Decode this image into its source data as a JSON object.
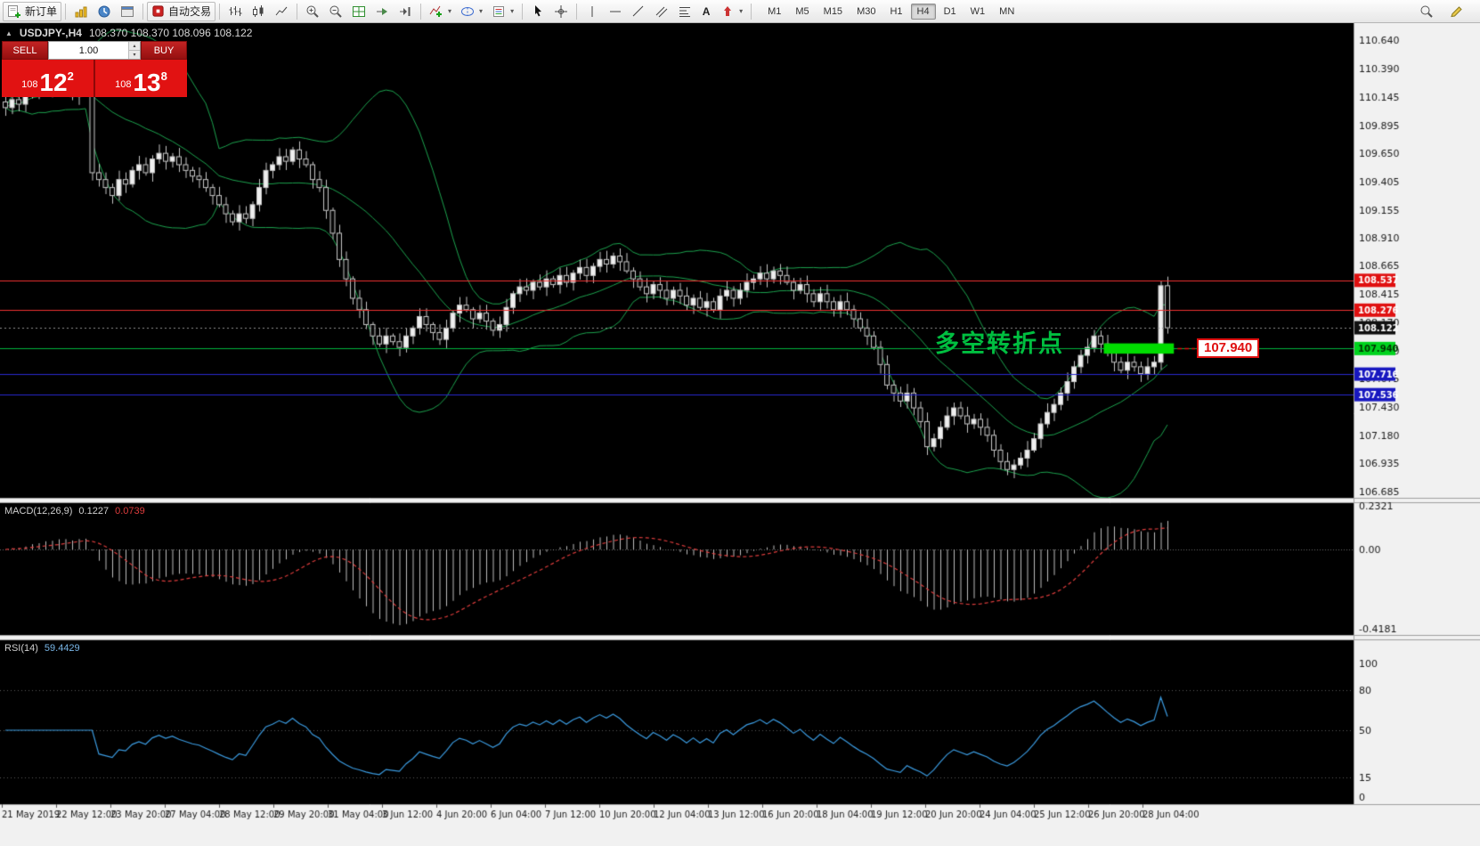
{
  "toolbar": {
    "new_order_label": "新订单",
    "autotrade_label": "自动交易",
    "timeframes": [
      {
        "label": "M1"
      },
      {
        "label": "M5"
      },
      {
        "label": "M15"
      },
      {
        "label": "M30"
      },
      {
        "label": "H1"
      },
      {
        "label": "H4",
        "active": true
      },
      {
        "label": "D1"
      },
      {
        "label": "W1"
      },
      {
        "label": "MN"
      }
    ]
  },
  "icons": {
    "collapse": "▲",
    "caret": "▾",
    "spin_up": "▴",
    "spin_down": "▾",
    "text_tool": "A"
  },
  "chart_header": {
    "symbol": "USDJPY-,H4",
    "ohlc": "108.370 108.370 108.096 108.122"
  },
  "trade_panel": {
    "sell_label": "SELL",
    "buy_label": "BUY",
    "volume": "1.00",
    "bid_prefix": "108",
    "bid_main": "12",
    "bid_sup": "2",
    "ask_prefix": "108",
    "ask_main": "13",
    "ask_sup": "8"
  },
  "annotation": {
    "text": "多空转折点",
    "color": "#00bf40"
  },
  "flag": {
    "text": "107.940",
    "price": 107.94
  },
  "indicators": {
    "macd": {
      "label": "MACD(12,26,9)",
      "value1": "0.1227",
      "value2": "0.0739"
    },
    "rsi": {
      "label": "RSI(14)",
      "value": "59.4429"
    }
  },
  "colors": {
    "chart_bg": "#000000",
    "axis_bg": "#f1f1f1",
    "axis_text": "#1b1b1b",
    "bull": "#efefef",
    "bear": "#060606",
    "outline": "#c6c6c6",
    "band": "#1ca24e",
    "macd_hist": "#bdbdbd",
    "macd_signal": "#dc3c3c",
    "rsi_line": "#3b9be0",
    "highlight": "#00dc00",
    "connector_red": "#e01010"
  },
  "chart_data": {
    "type": "candlestick",
    "symbol": "USDJPY-",
    "timeframe": "H4",
    "ohlc_display": {
      "open": "108.370",
      "high": "108.370",
      "low": "108.096",
      "close": "108.122"
    },
    "ylim": [
      106.64,
      110.79
    ],
    "closes": [
      110.05,
      110.12,
      110.08,
      110.18,
      110.25,
      110.2,
      110.28,
      110.22,
      110.3,
      110.24,
      110.15,
      110.32,
      110.28,
      109.48,
      109.42,
      109.35,
      109.28,
      109.42,
      109.38,
      109.5,
      109.55,
      109.48,
      109.6,
      109.65,
      109.58,
      109.62,
      109.55,
      109.5,
      109.45,
      109.42,
      109.35,
      109.28,
      109.2,
      109.12,
      109.05,
      109.12,
      109.08,
      109.2,
      109.35,
      109.5,
      109.55,
      109.62,
      109.58,
      109.68,
      109.6,
      109.55,
      109.42,
      109.35,
      109.15,
      108.95,
      108.72,
      108.55,
      108.38,
      108.28,
      108.15,
      108.05,
      107.98,
      108.05,
      108.0,
      107.95,
      108.05,
      108.12,
      108.22,
      108.15,
      108.08,
      108.02,
      108.12,
      108.25,
      108.32,
      108.28,
      108.2,
      108.25,
      108.18,
      108.1,
      108.15,
      108.3,
      108.42,
      108.48,
      108.45,
      108.52,
      108.48,
      108.55,
      108.5,
      108.58,
      108.52,
      108.6,
      108.65,
      108.58,
      108.66,
      108.72,
      108.68,
      108.75,
      108.7,
      108.62,
      108.55,
      108.48,
      108.42,
      108.5,
      108.45,
      108.38,
      108.45,
      108.4,
      108.32,
      108.38,
      108.3,
      108.35,
      108.28,
      108.4,
      108.45,
      108.38,
      108.45,
      108.52,
      108.55,
      108.6,
      108.55,
      108.62,
      108.58,
      108.52,
      108.45,
      108.5,
      108.42,
      108.35,
      108.42,
      108.35,
      108.28,
      108.35,
      108.28,
      108.2,
      108.12,
      108.05,
      107.95,
      107.8,
      107.62,
      107.55,
      107.48,
      107.55,
      107.42,
      107.3,
      107.08,
      107.15,
      107.25,
      107.35,
      107.42,
      107.35,
      107.28,
      107.32,
      107.25,
      107.18,
      107.05,
      106.95,
      106.88,
      106.92,
      106.98,
      107.05,
      107.15,
      107.28,
      107.38,
      107.45,
      107.55,
      107.65,
      107.78,
      107.88,
      107.95,
      108.05,
      107.98,
      107.9,
      107.82,
      107.75,
      107.82,
      107.78,
      107.72,
      107.78,
      107.82,
      108.49,
      108.122
    ],
    "indicators": {
      "bollinger": {
        "period": 20,
        "deviation": 2,
        "color": "#1ca24e"
      },
      "macd": {
        "fast": 12,
        "slow": 26,
        "signal": 9,
        "current_macd": 0.1227,
        "current_signal": 0.0739,
        "scale_max": 0.2321,
        "scale_min": -0.4181
      },
      "rsi": {
        "period": 14,
        "current": 59.4429,
        "levels": [
          80,
          50,
          15
        ]
      }
    },
    "levels": [
      {
        "text": "108.537",
        "price": 108.537,
        "line": "#f03030",
        "style": "solid",
        "tag_bg": "#e01010",
        "tag_fg": "#ffffff"
      },
      {
        "text": "108.276",
        "price": 108.276,
        "line": "#f03030",
        "style": "solid",
        "tag_bg": "#e01010",
        "tag_fg": "#ffffff"
      },
      {
        "text": "108.122",
        "price": 108.122,
        "line": "#909090",
        "style": "dotted",
        "tag_bg": "#101010",
        "tag_fg": "#ffffff"
      },
      {
        "text": "107.940",
        "price": 107.94,
        "line": "#00b43c",
        "style": "solid",
        "tag_bg": "#00d41e",
        "tag_fg": "#003300"
      },
      {
        "text": "107.716",
        "price": 107.716,
        "line": "#2828d0",
        "style": "solid",
        "tag_bg": "#1818c0",
        "tag_fg": "#ffffff"
      },
      {
        "text": "107.536",
        "price": 107.536,
        "line": "#2828d0",
        "style": "solid",
        "tag_bg": "#1818c0",
        "tag_fg": "#ffffff"
      }
    ],
    "highlight_rect": {
      "start_index": 165,
      "end_index": 175.5,
      "price_top": 107.985,
      "price_bottom": 107.895,
      "color": "#00dc00"
    },
    "price_axis_labels": [
      "110.640",
      "110.390",
      "110.145",
      "109.895",
      "109.650",
      "109.405",
      "109.155",
      "108.910",
      "108.665",
      "108.415",
      "108.170",
      "107.920",
      "107.675",
      "107.430",
      "107.180",
      "106.935",
      "106.685"
    ],
    "macd_axis_labels": [
      {
        "text": "0.2321",
        "value": 0.2321
      },
      {
        "text": "0.00",
        "value": 0
      },
      {
        "text": "-0.4181",
        "value": -0.4181
      }
    ],
    "rsi_axis_labels": [
      {
        "text": "100",
        "value": 100
      },
      {
        "text": "80",
        "value": 80
      },
      {
        "text": "50",
        "value": 50
      },
      {
        "text": "15",
        "value": 15
      },
      {
        "text": "0",
        "value": 0
      }
    ],
    "date_labels": [
      "21 May 2019",
      "22 May 12:00",
      "23 May 20:00",
      "27 May 04:00",
      "28 May 12:00",
      "29 May 20:00",
      "31 May 04:00",
      "3 Jun 12:00",
      "4 Jun 20:00",
      "6 Jun 04:00",
      "7 Jun 12:00",
      "10 Jun 20:00",
      "12 Jun 04:00",
      "13 Jun 12:00",
      "16 Jun 20:00",
      "18 Jun 04:00",
      "19 Jun 12:00",
      "20 Jun 20:00",
      "24 Jun 04:00",
      "25 Jun 12:00",
      "26 Jun 20:00",
      "28 Jun 04:00"
    ]
  }
}
